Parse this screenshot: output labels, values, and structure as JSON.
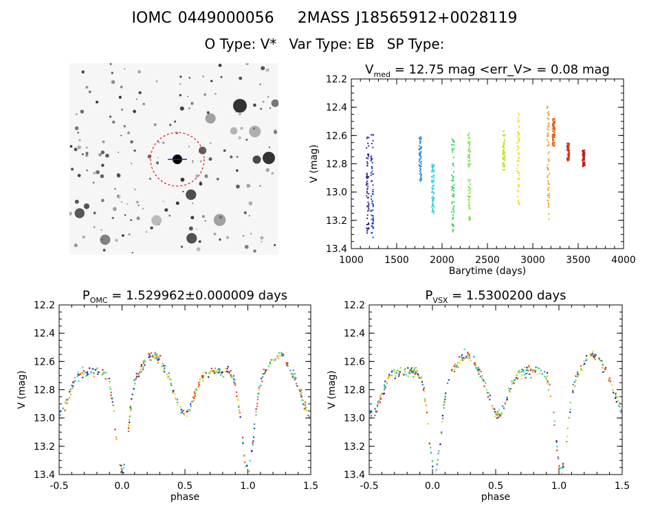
{
  "header": {
    "ids": [
      "IOMC 0449000056",
      "2MASS J18565912+0028119"
    ],
    "types": [
      "O Type: V*",
      "Var Type: EB",
      "SP Type:"
    ]
  },
  "chart_data": [
    {
      "type": "scatter",
      "panel": "finder-image",
      "labels": []
    },
    {
      "type": "scatter",
      "panel": "light-curve",
      "title_main": "V",
      "title_sub": "med",
      "title_rest": " = 12.75 mag <err_V> = 0.08 mag",
      "xlabel": "Barytime (days)",
      "ylabel": "V (mag)",
      "xlim": [
        1000,
        4000
      ],
      "ylim": [
        13.4,
        12.2
      ],
      "y_inverted": true,
      "xticks": [
        "1000",
        "1500",
        "2000",
        "2500",
        "3000",
        "3500",
        "4000"
      ],
      "yticks": [
        "12.2",
        "12.4",
        "12.6",
        "12.8",
        "13.0",
        "13.2",
        "13.4"
      ],
      "groups": [
        {
          "x": 1180,
          "ymin": 12.6,
          "ymax": 13.3,
          "color": "#3a1f8c"
        },
        {
          "x": 1230,
          "ymin": 12.58,
          "ymax": 13.33,
          "color": "#1f3fbf"
        },
        {
          "x": 1760,
          "ymin": 12.6,
          "ymax": 12.93,
          "color": "#2a8fd8"
        },
        {
          "x": 1900,
          "ymin": 12.8,
          "ymax": 13.15,
          "color": "#27d0d9"
        },
        {
          "x": 2120,
          "ymin": 12.62,
          "ymax": 13.28,
          "color": "#33d45a"
        },
        {
          "x": 2300,
          "ymin": 12.58,
          "ymax": 13.22,
          "color": "#7ae04a"
        },
        {
          "x": 2680,
          "ymin": 12.57,
          "ymax": 12.85,
          "color": "#c8e02a"
        },
        {
          "x": 2840,
          "ymin": 12.44,
          "ymax": 13.1,
          "color": "#f0e020"
        },
        {
          "x": 3170,
          "ymin": 12.37,
          "ymax": 13.22,
          "color": "#f0a020"
        },
        {
          "x": 3230,
          "ymin": 12.48,
          "ymax": 12.68,
          "color": "#e85a18"
        },
        {
          "x": 3390,
          "ymin": 12.65,
          "ymax": 12.78,
          "color": "#d83018"
        },
        {
          "x": 3560,
          "ymin": 12.7,
          "ymax": 12.82,
          "color": "#c02010"
        }
      ]
    },
    {
      "type": "scatter",
      "panel": "phase-omc",
      "title_main": "P",
      "title_sub": "OMC",
      "title_rest": " = 1.529962±0.000009 days",
      "xlabel": "phase",
      "ylabel": "V (mag)",
      "xlim": [
        -0.5,
        1.5
      ],
      "ylim": [
        13.4,
        12.2
      ],
      "y_inverted": true,
      "xticks": [
        "-0.5",
        "0.0",
        "0.5",
        "1.0",
        "1.5"
      ],
      "yticks": [
        "12.2",
        "12.4",
        "12.6",
        "12.8",
        "13.0",
        "13.2",
        "13.4"
      ],
      "phase_curve": {
        "primary_phase": 0.0,
        "primary_min": 13.25,
        "secondary_phase": 0.5,
        "secondary_min": 12.85,
        "max_phase": [
          0.25,
          0.75
        ],
        "max_mag": 12.55
      }
    },
    {
      "type": "scatter",
      "panel": "phase-vsx",
      "title_main": "P",
      "title_sub": "VSX",
      "title_rest": " = 1.5300200 days",
      "xlabel": "phase",
      "ylabel": "V (mag)",
      "xlim": [
        -0.5,
        1.5
      ],
      "ylim": [
        13.4,
        12.2
      ],
      "y_inverted": true,
      "xticks": [
        "-0.5",
        "0.0",
        "0.5",
        "1.0",
        "1.5"
      ],
      "yticks": [
        "12.2",
        "12.4",
        "12.6",
        "12.8",
        "13.0",
        "13.2",
        "13.4"
      ],
      "phase_curve": {
        "primary_phase": 0.02,
        "primary_min": 13.25,
        "secondary_phase": 0.52,
        "secondary_min": 12.85,
        "max_phase": [
          0.27,
          0.77
        ],
        "max_mag": 12.55
      }
    }
  ],
  "colors": {
    "palette": [
      "#3a1f8c",
      "#1f3fbf",
      "#2a8fd8",
      "#27d0d9",
      "#33d45a",
      "#7ae04a",
      "#c8e02a",
      "#f0e020",
      "#f0a020",
      "#e85a18",
      "#d83018"
    ],
    "circle": "#e01010"
  }
}
